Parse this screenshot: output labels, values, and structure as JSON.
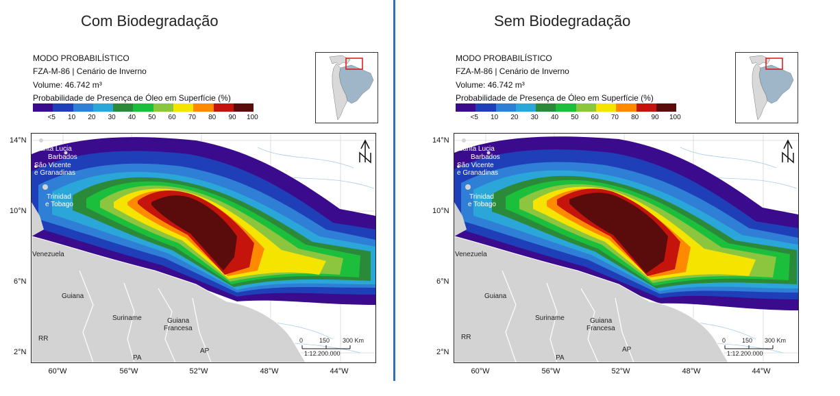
{
  "panels": [
    {
      "title": "Com Biodegradação",
      "mode": "MODO PROBABILÍSTICO",
      "scenario": "FZA-M-86 | Cenário de Inverno",
      "volume": "Volume: 46.742 m³",
      "legend_title": "Probabilidade de Presença de Óleo em Superfície (%)"
    },
    {
      "title": "Sem Biodegradação",
      "mode": "MODO PROBABILÍSTICO",
      "scenario": "FZA-M-86 | Cenário de Inverno",
      "volume": "Volume: 46.742 m³",
      "legend_title": "Probabilidade de Presença de Óleo em Superfície (%)"
    }
  ],
  "legend": {
    "colors": [
      "#3a0b8c",
      "#1f3fb8",
      "#2f7fd6",
      "#2ba6d9",
      "#2b8a3a",
      "#1cbf3c",
      "#8cc63f",
      "#f5e400",
      "#ff8a00",
      "#c4140c",
      "#5a0c0c"
    ],
    "ticks": [
      "<5",
      "10",
      "20",
      "30",
      "40",
      "50",
      "60",
      "70",
      "80",
      "90",
      "100"
    ]
  },
  "axes": {
    "lat_ticks": [
      "14°N",
      "10°N",
      "6°N",
      "2°N"
    ],
    "lon_ticks": [
      "60°W",
      "56°W",
      "52°W",
      "48°W",
      "44°W"
    ]
  },
  "map_labels": {
    "santa_lucia": "Santa Lucia",
    "barbados": "Barbados",
    "sao_vicente": "São Vicente",
    "granadinas": "e Granadinas",
    "trinidad": "Trinidad",
    "tobago": "e Tobago",
    "venezuela": "Venezuela",
    "guiana": "Guiana",
    "suriname": "Suriname",
    "guiana_francesa_1": "Guiana",
    "guiana_francesa_2": "Francesa",
    "rr": "RR",
    "pa": "PA",
    "ap": "AP"
  },
  "scalebar": {
    "t0": "0",
    "t150": "150",
    "t300": "300 Km",
    "ratio": "1:12.200.000"
  },
  "north_label": "N"
}
